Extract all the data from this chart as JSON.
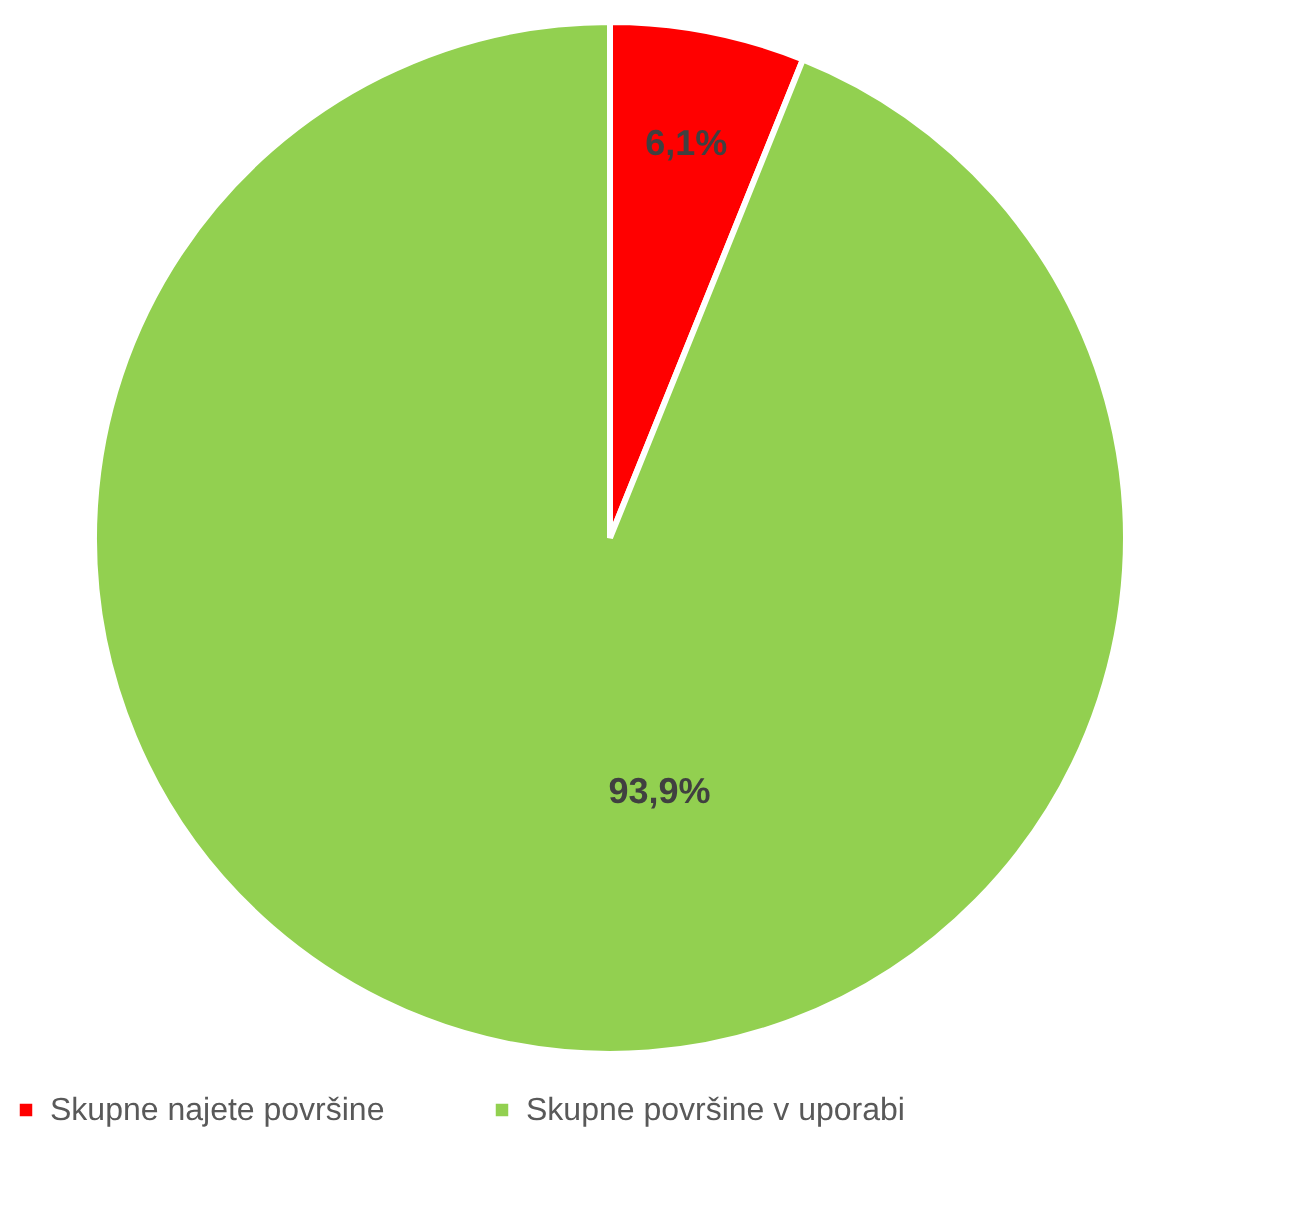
{
  "chart_data": {
    "type": "pie",
    "categories": [
      "Skupne najete površine",
      "Skupne površine v uporabi"
    ],
    "values": [
      6.1,
      93.9
    ],
    "colors": [
      "#ff0000",
      "#92d050"
    ],
    "value_labels": [
      "6,1%",
      "93,9%"
    ],
    "legend": "bottom"
  }
}
